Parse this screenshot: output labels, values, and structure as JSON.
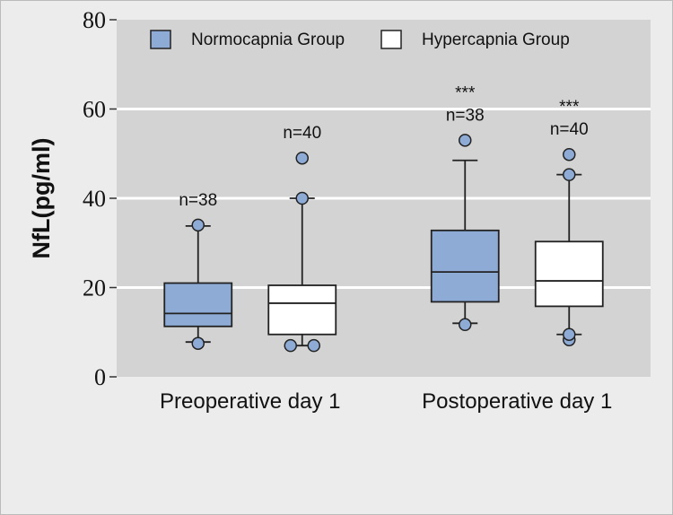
{
  "chart_data": {
    "type": "box",
    "ylabel": "NfL(pg/ml)",
    "xlabel": "",
    "ylim": [
      0,
      80
    ],
    "yticks": [
      0,
      20,
      40,
      60,
      80
    ],
    "grid": true,
    "legend_position": "top",
    "categories": [
      "Preoperative day 1",
      "Postoperative day 1"
    ],
    "series": [
      {
        "name": "Normocapnia Group",
        "color": "#8eabd6",
        "boxes": [
          {
            "whisker_low": 7.8,
            "q1": 11.3,
            "median": 14.2,
            "q3": 21.0,
            "whisker_high": 33.8,
            "outliers": [
              34.0,
              7.5
            ],
            "n_label": "n=38",
            "sig_label": ""
          },
          {
            "whisker_low": 12.0,
            "q1": 16.8,
            "median": 23.5,
            "q3": 32.8,
            "whisker_high": 48.5,
            "outliers": [
              53.0,
              11.7
            ],
            "n_label": "n=38",
            "sig_label": "***"
          }
        ]
      },
      {
        "name": "Hypercapnia Group",
        "color": "#ffffff",
        "boxes": [
          {
            "whisker_low": 7.0,
            "q1": 9.5,
            "median": 16.5,
            "q3": 20.5,
            "whisker_high": 40.0,
            "outliers": [
              49.0,
              40.0,
              7.0,
              7.0
            ],
            "n_label": "n=40",
            "sig_label": ""
          },
          {
            "whisker_low": 9.5,
            "q1": 15.8,
            "median": 21.5,
            "q3": 30.3,
            "whisker_high": 45.3,
            "outliers": [
              49.8,
              45.3,
              8.3,
              9.5
            ],
            "n_label": "n=40",
            "sig_label": "***"
          }
        ]
      }
    ]
  }
}
